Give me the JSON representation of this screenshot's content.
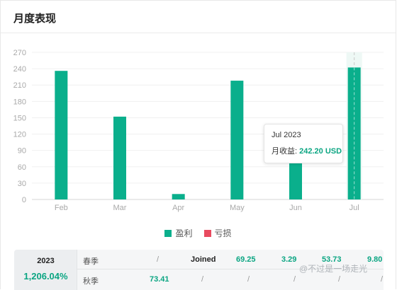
{
  "header": {
    "title": "月度表现"
  },
  "colors": {
    "profit": "#0aaf8c",
    "loss": "#e84a5f",
    "accent": "#0aa582"
  },
  "chart_data": {
    "type": "bar",
    "categories": [
      "Feb",
      "Mar",
      "Apr",
      "May",
      "Jun",
      "Jul"
    ],
    "values": [
      236,
      152,
      10,
      218,
      70,
      242.2
    ],
    "ylim": [
      0,
      270
    ],
    "yticks": [
      "0",
      "30",
      "60",
      "90",
      "120",
      "150",
      "180",
      "210",
      "240",
      "270"
    ],
    "grid": true,
    "legend_placement": "bottom",
    "highlighted": "Jul"
  },
  "legend": [
    {
      "label": "盈利",
      "color": "#0aaf8c"
    },
    {
      "label": "亏损",
      "color": "#e84a5f"
    }
  ],
  "tooltip": {
    "title": "Jul 2023",
    "label": "月收益: ",
    "value": "242.20 USD"
  },
  "table": {
    "year": "2023",
    "total": "1,206.04%",
    "rows": [
      {
        "season": "春季",
        "cells": [
          "/",
          "Joined",
          "69.25",
          "3.29",
          "53.73",
          "9.80"
        ]
      },
      {
        "season": "秋季",
        "cells": [
          "73.41",
          "/",
          "/",
          "/",
          "/",
          "/"
        ]
      }
    ]
  },
  "watermark": "@不过是一场走光"
}
